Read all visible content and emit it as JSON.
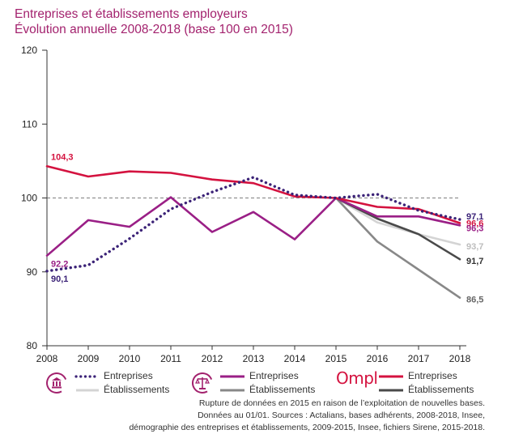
{
  "title": "Entreprises et établissements employeurs",
  "subtitle": "Évolution annuelle 2008-2018 (base 100 en 2015)",
  "chart_data": {
    "type": "line",
    "x": [
      2008,
      2009,
      2010,
      2011,
      2012,
      2013,
      2014,
      2015,
      2016,
      2017,
      2018
    ],
    "ylim": [
      80,
      120
    ],
    "yticks": [
      80,
      90,
      100,
      110,
      120
    ],
    "reference_line": 100,
    "series": [
      {
        "group": "bank",
        "name": "Entreprises",
        "color": "#3b2277",
        "style": "dotted",
        "values": [
          90.1,
          90.9,
          94.5,
          98.5,
          100.8,
          102.8,
          100.4,
          100.0,
          100.5,
          98.3,
          97.1
        ]
      },
      {
        "group": "bank",
        "name": "Établissements",
        "color": "#d4d4d4",
        "style": "solid",
        "values": [
          null,
          null,
          null,
          null,
          null,
          null,
          null,
          100.0,
          96.7,
          95.1,
          93.7
        ]
      },
      {
        "group": "justice",
        "name": "Entreprises",
        "color": "#9a1f86",
        "style": "solid",
        "values": [
          92.2,
          97.0,
          96.1,
          100.1,
          95.4,
          98.1,
          94.4,
          100.0,
          97.5,
          97.5,
          96.3
        ]
      },
      {
        "group": "justice",
        "name": "Établissements",
        "color": "#888888",
        "style": "solid",
        "values": [
          null,
          null,
          null,
          null,
          null,
          null,
          null,
          100.0,
          94.1,
          90.3,
          86.5
        ]
      },
      {
        "group": "ompl",
        "name": "Entreprises",
        "color": "#d4123f",
        "style": "solid",
        "values": [
          104.3,
          102.9,
          103.6,
          103.4,
          102.5,
          102.0,
          100.2,
          100.0,
          98.8,
          98.5,
          96.6
        ]
      },
      {
        "group": "ompl",
        "name": "Établissements",
        "color": "#4a4a4a",
        "style": "solid",
        "values": [
          null,
          null,
          null,
          null,
          null,
          null,
          null,
          100.0,
          97.2,
          95.1,
          91.7
        ]
      }
    ],
    "data_labels": [
      {
        "text": "104,3",
        "x": 2008,
        "y": 104.3,
        "color": "#d4123f"
      },
      {
        "text": "92,2",
        "x": 2008,
        "y": 92.2,
        "color": "#9a1f86"
      },
      {
        "text": "90,1",
        "x": 2008,
        "y": 90.1,
        "color": "#3b2277"
      },
      {
        "text": "97,1",
        "x": 2018,
        "y": 97.1,
        "color": "#3b2277"
      },
      {
        "text": "96,6",
        "x": 2018,
        "y": 96.6,
        "color": "#d4123f"
      },
      {
        "text": "96,3",
        "x": 2018,
        "y": 96.3,
        "color": "#9a1f86"
      },
      {
        "text": "93,7",
        "x": 2018,
        "y": 93.7,
        "color": "#bdbdbd"
      },
      {
        "text": "91,7",
        "x": 2018,
        "y": 91.7,
        "color": "#333333"
      },
      {
        "text": "86,5",
        "x": 2018,
        "y": 86.5,
        "color": "#666666"
      }
    ]
  },
  "legend": {
    "bank_icon": "bank-icon",
    "justice_icon": "scales-justice-icon",
    "logo": "Ompl",
    "entreprises": "Entreprises",
    "etablissements": "Établissements"
  },
  "notes": {
    "line1": "Rupture de données en 2015 en raison de l’exploitation de nouvelles bases.",
    "line2": "Données au 01/01. Sources : Actalians, bases adhérents, 2008-2018, Insee,",
    "line3": "démographie des entreprises et établissements, 2009-2015, Insee, fichiers Sirene, 2015-2018."
  }
}
